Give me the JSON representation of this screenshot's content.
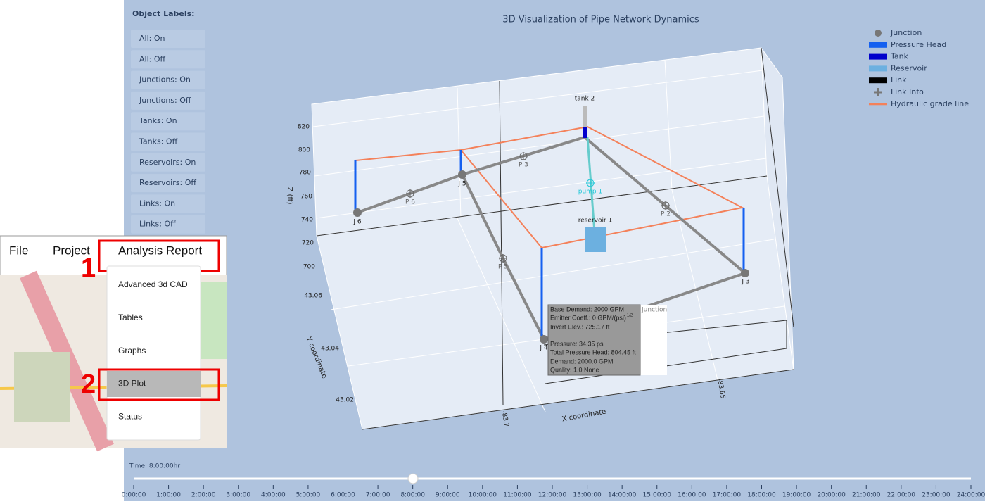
{
  "sidebar": {
    "heading": "Object Labels:",
    "buttons": [
      "All: On",
      "All: Off",
      "Junctions: On",
      "Junctions: Off",
      "Tanks: On",
      "Tanks: Off",
      "Reservoirs: On",
      "Reservoirs: Off",
      "Links: On",
      "Links: Off"
    ]
  },
  "plot": {
    "title": "3D Visualization of Pipe Network Dynamics",
    "legend": [
      "Junction",
      "Pressure Head",
      "Tank",
      "Reservoir",
      "Link",
      "Link Info",
      "Hydraulic grade line"
    ],
    "z_axis": {
      "label": "Z (ft)",
      "ticks": [
        "820",
        "800",
        "780",
        "760",
        "740",
        "720",
        "700"
      ]
    },
    "y_axis": {
      "label": "Y coordinate",
      "ticks": [
        "43.06",
        "43.04",
        "43.02"
      ]
    },
    "x_axis": {
      "label": "X coordinate",
      "ticks": [
        "-83.7",
        "-83.65"
      ]
    },
    "nodes": [
      "J 6",
      "J 5",
      "J 3",
      "J 4",
      "tank 2",
      "reservoir 1"
    ],
    "links": [
      "P 6",
      "P 3",
      "P 2",
      "P 5",
      "pump 1"
    ],
    "hover": {
      "name": "Junction",
      "lines": [
        "Base Demand: 2000 GPM",
        "Emitter Coeff.: 0 GPM/(psi)",
        "Invert Elev.: 725.17 ft",
        "Pressure: 34.35 psi",
        "Total Pressure Head: 804.45 ft",
        "Demand: 2000.0 GPM",
        "Quality: 1.0 None"
      ],
      "superscript": "1/2"
    }
  },
  "timeline": {
    "label": "Time: 8:00:00hr",
    "ticks": [
      "0:00:00",
      "1:00:00",
      "2:00:00",
      "3:00:00",
      "4:00:00",
      "5:00:00",
      "6:00:00",
      "7:00:00",
      "8:00:00",
      "9:00:00",
      "10:00:00",
      "11:00:00",
      "12:00:00",
      "13:00:00",
      "14:00:00",
      "15:00:00",
      "16:00:00",
      "17:00:00",
      "18:00:00",
      "19:00:00",
      "20:00:00",
      "21:00:00",
      "22:00:00",
      "23:00:00",
      "24:00:00"
    ]
  },
  "menu": {
    "bar": [
      "File",
      "Project",
      "Analysis Report"
    ],
    "items": [
      "Advanced 3d CAD",
      "Tables",
      "Graphs",
      "3D Plot",
      "Status"
    ],
    "steps": [
      "1",
      "2"
    ]
  }
}
